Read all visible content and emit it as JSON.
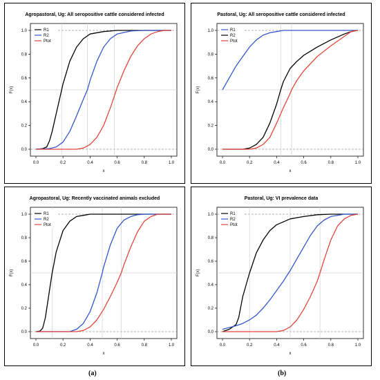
{
  "figure": {
    "sublabels": [
      "(a)",
      "(b)"
    ]
  },
  "chart_data": [
    {
      "type": "line",
      "title": "Agropastoral, Ug: All seropositive cattle considered infected",
      "xlabel": "x",
      "ylabel": "F(x)",
      "xlim": [
        0,
        1
      ],
      "ylim": [
        0,
        1
      ],
      "xticks": [
        "0.0",
        "0.2",
        "0.4",
        "0.6",
        "0.8",
        "1.0"
      ],
      "yticks": [
        "0.0",
        "0.2",
        "0.4",
        "0.6",
        "0.8",
        "1.0"
      ],
      "grid": false,
      "reference_lines": {
        "horizontal": [
          0,
          0.5,
          1
        ],
        "vertical": [
          0.19,
          0.38,
          0.58
        ]
      },
      "legend": {
        "placement": "top-left"
      },
      "series": [
        {
          "name": "R1",
          "color": "#000000",
          "x": [
            0,
            0.05,
            0.08,
            0.1,
            0.12,
            0.15,
            0.18,
            0.2,
            0.25,
            0.3,
            0.35,
            0.4,
            0.5,
            0.6,
            0.7,
            0.8,
            1.0
          ],
          "y": [
            0,
            0.005,
            0.02,
            0.07,
            0.15,
            0.3,
            0.45,
            0.55,
            0.74,
            0.86,
            0.93,
            0.97,
            0.99,
            1.0,
            1.0,
            1.0,
            1.0
          ]
        },
        {
          "name": "R2",
          "color": "#3355cc",
          "x": [
            0,
            0.1,
            0.15,
            0.2,
            0.25,
            0.3,
            0.35,
            0.38,
            0.4,
            0.45,
            0.5,
            0.55,
            0.6,
            0.7,
            0.8,
            1.0
          ],
          "y": [
            0,
            0.005,
            0.02,
            0.06,
            0.15,
            0.28,
            0.42,
            0.5,
            0.58,
            0.74,
            0.86,
            0.93,
            0.97,
            0.995,
            1.0,
            1.0
          ]
        },
        {
          "name": "Ptot",
          "color": "#e0453a",
          "x": [
            0,
            0.3,
            0.35,
            0.4,
            0.45,
            0.5,
            0.55,
            0.58,
            0.6,
            0.65,
            0.7,
            0.75,
            0.8,
            0.85,
            0.9,
            0.95,
            1.0
          ],
          "y": [
            0,
            0.0,
            0.01,
            0.04,
            0.1,
            0.2,
            0.35,
            0.45,
            0.52,
            0.66,
            0.78,
            0.87,
            0.93,
            0.97,
            0.99,
            1.0,
            1.0
          ]
        }
      ]
    },
    {
      "type": "line",
      "title": "Pastoral, Ug: All seropositive cattle considered infected",
      "xlabel": "x",
      "ylabel": "F(x)",
      "xlim": [
        0,
        1
      ],
      "ylim": [
        0,
        1
      ],
      "xticks": [
        "0.0",
        "0.2",
        "0.4",
        "0.6",
        "0.8",
        "1.0"
      ],
      "yticks": [
        "0.0",
        "0.2",
        "0.4",
        "0.6",
        "0.8",
        "1.0"
      ],
      "grid": false,
      "reference_lines": {
        "horizontal": [
          0,
          0.5,
          1
        ],
        "vertical": [
          0.43,
          0.51
        ]
      },
      "legend": {
        "placement": "top-left"
      },
      "series": [
        {
          "name": "R1",
          "color": "#3355cc",
          "x": [
            0,
            0.05,
            0.1,
            0.15,
            0.2,
            0.25,
            0.3,
            0.35,
            0.4,
            0.45,
            0.5,
            0.6,
            0.8,
            1.0
          ],
          "y": [
            0.5,
            0.6,
            0.7,
            0.78,
            0.86,
            0.92,
            0.96,
            0.98,
            0.99,
            1.0,
            1.0,
            1.0,
            1.0,
            1.0
          ]
        },
        {
          "name": "R2",
          "color": "#000000",
          "x": [
            0,
            0.15,
            0.2,
            0.25,
            0.3,
            0.35,
            0.4,
            0.43,
            0.45,
            0.5,
            0.55,
            0.6,
            0.7,
            0.8,
            0.9,
            0.95,
            1.0
          ],
          "y": [
            0,
            0.0,
            0.01,
            0.04,
            0.1,
            0.22,
            0.38,
            0.5,
            0.57,
            0.68,
            0.74,
            0.79,
            0.86,
            0.92,
            0.97,
            0.99,
            1.0
          ]
        },
        {
          "name": "Ptot",
          "color": "#e0453a",
          "x": [
            0,
            0.2,
            0.25,
            0.3,
            0.35,
            0.4,
            0.45,
            0.5,
            0.51,
            0.55,
            0.6,
            0.7,
            0.8,
            0.9,
            0.95,
            1.0
          ],
          "y": [
            0,
            0.0,
            0.01,
            0.04,
            0.1,
            0.22,
            0.35,
            0.47,
            0.5,
            0.58,
            0.66,
            0.78,
            0.87,
            0.95,
            0.99,
            1.0
          ]
        }
      ]
    },
    {
      "type": "line",
      "title": "Agropastoral, Ug: Recently vaccinated animals excluded",
      "xlabel": "x",
      "ylabel": "F(x)",
      "xlim": [
        0,
        1
      ],
      "ylim": [
        0,
        1
      ],
      "xticks": [
        "0.0",
        "0.2",
        "0.4",
        "0.6",
        "0.8",
        "1.0"
      ],
      "yticks": [
        "0.0",
        "0.2",
        "0.4",
        "0.6",
        "0.8",
        "1.0"
      ],
      "grid": false,
      "reference_lines": {
        "horizontal": [
          0,
          0.5,
          1
        ],
        "vertical": [
          0.12,
          0.49,
          0.63
        ]
      },
      "legend": {
        "placement": "top-left"
      },
      "series": [
        {
          "name": "R1",
          "color": "#000000",
          "x": [
            0,
            0.03,
            0.05,
            0.07,
            0.1,
            0.12,
            0.15,
            0.2,
            0.25,
            0.3,
            0.35,
            0.4,
            0.5,
            1.0
          ],
          "y": [
            0,
            0.005,
            0.03,
            0.12,
            0.35,
            0.5,
            0.68,
            0.86,
            0.94,
            0.98,
            0.99,
            1.0,
            1.0,
            1.0
          ]
        },
        {
          "name": "R2",
          "color": "#3355cc",
          "x": [
            0,
            0.25,
            0.3,
            0.35,
            0.4,
            0.45,
            0.49,
            0.5,
            0.55,
            0.6,
            0.65,
            0.7,
            0.75,
            0.8,
            0.9,
            1.0
          ],
          "y": [
            0,
            0.0,
            0.02,
            0.07,
            0.17,
            0.33,
            0.5,
            0.55,
            0.74,
            0.88,
            0.95,
            0.98,
            0.995,
            1.0,
            1.0,
            1.0
          ]
        },
        {
          "name": "Ptot",
          "color": "#e0453a",
          "x": [
            0,
            0.3,
            0.35,
            0.4,
            0.45,
            0.5,
            0.55,
            0.6,
            0.63,
            0.65,
            0.7,
            0.75,
            0.8,
            0.85,
            0.9,
            1.0
          ],
          "y": [
            0,
            0.0,
            0.01,
            0.04,
            0.1,
            0.19,
            0.3,
            0.42,
            0.5,
            0.57,
            0.72,
            0.85,
            0.94,
            0.98,
            1.0,
            1.0
          ]
        }
      ]
    },
    {
      "type": "line",
      "title": "Pastoral, Ug: VI prevalence data",
      "xlabel": "x",
      "ylabel": "F(x)",
      "xlim": [
        0,
        1
      ],
      "ylim": [
        0,
        1
      ],
      "xticks": [
        "0.0",
        "0.2",
        "0.4",
        "0.6",
        "0.8",
        "1.0"
      ],
      "yticks": [
        "0.0",
        "0.2",
        "0.4",
        "0.6",
        "0.8",
        "1.0"
      ],
      "grid": false,
      "reference_lines": {
        "horizontal": [
          0,
          0.5,
          1
        ],
        "vertical": [
          0.2,
          0.5,
          0.72
        ]
      },
      "legend": {
        "placement": "top-left"
      },
      "series": [
        {
          "name": "R1",
          "color": "#000000",
          "x": [
            0,
            0.05,
            0.1,
            0.12,
            0.15,
            0.2,
            0.25,
            0.3,
            0.35,
            0.4,
            0.5,
            0.6,
            0.7,
            0.8,
            1.0
          ],
          "y": [
            0,
            0.02,
            0.06,
            0.12,
            0.3,
            0.5,
            0.67,
            0.78,
            0.86,
            0.91,
            0.96,
            0.98,
            0.995,
            1.0,
            1.0
          ]
        },
        {
          "name": "R2",
          "color": "#3355cc",
          "x": [
            0,
            0.05,
            0.1,
            0.15,
            0.2,
            0.25,
            0.3,
            0.35,
            0.4,
            0.45,
            0.5,
            0.55,
            0.6,
            0.65,
            0.7,
            0.75,
            0.8,
            0.9,
            1.0
          ],
          "y": [
            0.02,
            0.035,
            0.05,
            0.07,
            0.1,
            0.14,
            0.2,
            0.27,
            0.35,
            0.43,
            0.52,
            0.62,
            0.72,
            0.82,
            0.9,
            0.95,
            0.98,
            1.0,
            1.0
          ]
        },
        {
          "name": "Ptot",
          "color": "#e0453a",
          "x": [
            0,
            0.4,
            0.45,
            0.5,
            0.55,
            0.6,
            0.65,
            0.7,
            0.72,
            0.75,
            0.8,
            0.85,
            0.9,
            0.95,
            1.0
          ],
          "y": [
            0,
            0.0,
            0.01,
            0.04,
            0.1,
            0.19,
            0.3,
            0.43,
            0.5,
            0.61,
            0.78,
            0.9,
            0.96,
            0.99,
            1.0
          ]
        }
      ]
    }
  ]
}
